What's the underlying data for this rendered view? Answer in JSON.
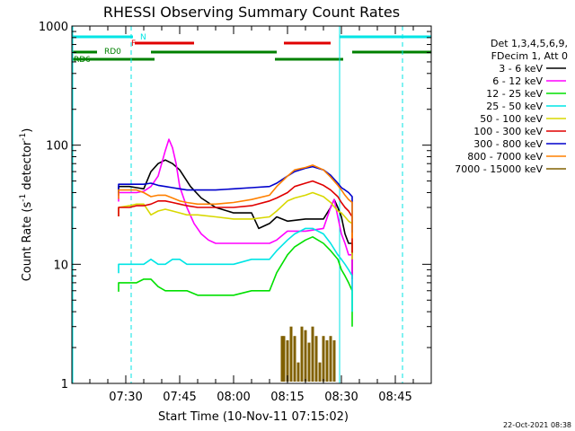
{
  "chart_data": {
    "type": "line",
    "title": "RHESSI Observing Summary Count Rates",
    "xlabel": "Start Time (10-Nov-11 07:15:02)",
    "ylabel_main": "Count Rate (s",
    "ylabel_sup": "-1",
    "ylabel_rest": " detector",
    "ylabel_sup2": "-1",
    "ylabel_end": ")",
    "y_scale": "log",
    "ylim": [
      1,
      1000
    ],
    "xlim_minutes": [
      0,
      100
    ],
    "y_ticks": [
      "1",
      "10",
      "100",
      "1000"
    ],
    "x_ticks": [
      {
        "label": "07:30",
        "minute": 15
      },
      {
        "label": "07:45",
        "minute": 30
      },
      {
        "label": "08:00",
        "minute": 45
      },
      {
        "label": "08:15",
        "minute": 60
      },
      {
        "label": "08:30",
        "minute": 75
      },
      {
        "label": "08:45",
        "minute": 90
      }
    ],
    "legend_header": [
      "Det 1,3,4,5,6,9,",
      "FDecim 1, Att 0"
    ],
    "legend_placement": "right",
    "timestamp": "22-Oct-2021 08:38",
    "flag_labels": {
      "night": "N",
      "flare": "F",
      "rd0": "RD0",
      "rd6": "RD6"
    },
    "flags": {
      "night": [
        [
          0,
          17
        ],
        [
          74.5,
          100
        ]
      ],
      "flare": [
        [
          17.5,
          34
        ],
        [
          59,
          72
        ]
      ],
      "rd0": [
        [
          0,
          7
        ],
        [
          22,
          57
        ],
        [
          78,
          100
        ]
      ],
      "rd6": [
        [
          0,
          23
        ],
        [
          56.5,
          75.5
        ]
      ]
    },
    "colors": {
      "night": "#00e5e5",
      "flare": "#e00000",
      "rd": "#008000"
    },
    "vlines_dashed_minutes": [
      16.5,
      92
    ],
    "vline_solid_minutes": [
      74.5
    ],
    "series": [
      {
        "name": "3 - 6 keV",
        "color": "#000000",
        "x": [
          13,
          16,
          18,
          20,
          22,
          24,
          26,
          28,
          30,
          33,
          36,
          40,
          45,
          50,
          52,
          55,
          57,
          60,
          65,
          70,
          72,
          73,
          74,
          75,
          76,
          77,
          78
        ],
        "y": [
          45,
          45,
          44,
          43,
          60,
          70,
          75,
          70,
          62,
          45,
          36,
          30,
          27,
          27,
          20,
          22,
          25,
          23,
          24,
          24,
          30,
          35,
          30,
          25,
          18,
          15,
          15
        ]
      },
      {
        "name": "6 - 12 keV",
        "color": "#ff00ff",
        "x": [
          13,
          16,
          18,
          20,
          22,
          24,
          26,
          27,
          28,
          29,
          30,
          32,
          34,
          36,
          38,
          40,
          45,
          50,
          55,
          57,
          60,
          65,
          70,
          72,
          73,
          74,
          75,
          76,
          77,
          78
        ],
        "y": [
          40,
          40,
          40,
          41,
          45,
          55,
          90,
          112,
          95,
          70,
          45,
          30,
          22,
          18,
          16,
          15,
          15,
          15,
          15,
          16,
          19,
          19,
          20,
          30,
          35,
          25,
          18,
          15,
          12,
          12
        ]
      },
      {
        "name": "12 - 25 keV",
        "color": "#00e000",
        "x": [
          13,
          16,
          18,
          20,
          22,
          24,
          26,
          28,
          30,
          32,
          35,
          40,
          45,
          50,
          55,
          57,
          60,
          62,
          65,
          67,
          70,
          72,
          74,
          75,
          76,
          77,
          78
        ],
        "y": [
          7,
          7,
          7,
          7.5,
          7.5,
          6.5,
          6,
          6,
          6,
          6,
          5.5,
          5.5,
          5.5,
          6,
          6,
          8.5,
          12,
          14,
          16,
          17,
          15,
          13,
          11,
          9,
          8,
          7,
          6
        ]
      },
      {
        "name": "25 - 50 keV",
        "color": "#00e5e5",
        "x": [
          13,
          16,
          18,
          20,
          22,
          24,
          26,
          28,
          30,
          32,
          35,
          40,
          45,
          50,
          55,
          57,
          60,
          62,
          65,
          67,
          70,
          72,
          74,
          75,
          76,
          77,
          78
        ],
        "y": [
          10,
          10,
          10,
          10,
          11,
          10,
          10,
          11,
          11,
          10,
          10,
          10,
          10,
          11,
          11,
          13,
          16,
          18,
          20,
          20,
          18,
          15,
          12,
          11,
          10,
          9,
          8
        ]
      },
      {
        "name": "50 - 100 keV",
        "color": "#d8d800",
        "x": [
          13,
          16,
          18,
          20,
          22,
          24,
          26,
          28,
          30,
          32,
          35,
          40,
          45,
          50,
          55,
          57,
          60,
          62,
          65,
          67,
          70,
          72,
          74,
          75,
          76,
          77,
          78
        ],
        "y": [
          30,
          31,
          32,
          32,
          26,
          28,
          29,
          28,
          27,
          26,
          26,
          25,
          24,
          24,
          25,
          28,
          34,
          36,
          38,
          40,
          37,
          33,
          28,
          27,
          25,
          23,
          22
        ]
      },
      {
        "name": "100 - 300 keV",
        "color": "#e00000",
        "x": [
          13,
          16,
          18,
          20,
          22,
          24,
          26,
          28,
          30,
          32,
          35,
          40,
          45,
          50,
          55,
          57,
          60,
          62,
          65,
          67,
          70,
          72,
          74,
          75,
          76,
          77,
          78
        ],
        "y": [
          30,
          30,
          31,
          31,
          32,
          34,
          34,
          33,
          32,
          31,
          30,
          30,
          30,
          31,
          34,
          36,
          40,
          45,
          48,
          50,
          46,
          42,
          37,
          33,
          30,
          28,
          25
        ]
      },
      {
        "name": "300 - 800 keV",
        "color": "#0000cc",
        "x": [
          13,
          16,
          18,
          20,
          22,
          24,
          26,
          28,
          30,
          32,
          35,
          40,
          45,
          50,
          55,
          57,
          60,
          62,
          65,
          67,
          70,
          72,
          74,
          75,
          76,
          77,
          78
        ],
        "y": [
          47,
          47,
          47,
          47,
          48,
          46,
          45,
          44,
          43,
          42,
          42,
          42,
          43,
          44,
          45,
          48,
          55,
          60,
          64,
          66,
          62,
          56,
          48,
          44,
          42,
          40,
          37
        ]
      },
      {
        "name": "800 - 7000 keV",
        "color": "#ff8000",
        "x": [
          13,
          16,
          18,
          20,
          22,
          24,
          26,
          28,
          30,
          32,
          35,
          40,
          45,
          50,
          55,
          57,
          60,
          62,
          65,
          67,
          70,
          72,
          74,
          75,
          76,
          77,
          78
        ],
        "y": [
          42,
          42,
          42,
          40,
          37,
          38,
          38,
          36,
          34,
          33,
          32,
          32,
          33,
          35,
          38,
          45,
          55,
          62,
          65,
          68,
          62,
          54,
          46,
          42,
          38,
          35,
          33
        ]
      },
      {
        "name": "7000 - 15000 keV",
        "color": "#806000",
        "x": [
          58.5,
          59,
          60,
          61,
          62,
          63,
          64,
          65,
          66,
          67,
          68,
          69,
          70,
          71,
          72,
          73
        ],
        "y": [
          2.5,
          2.5,
          2.3,
          3,
          2.5,
          1.5,
          3,
          2.8,
          2.2,
          3,
          2.5,
          1.5,
          2.5,
          2.3,
          2.5,
          2.3
        ]
      }
    ]
  }
}
